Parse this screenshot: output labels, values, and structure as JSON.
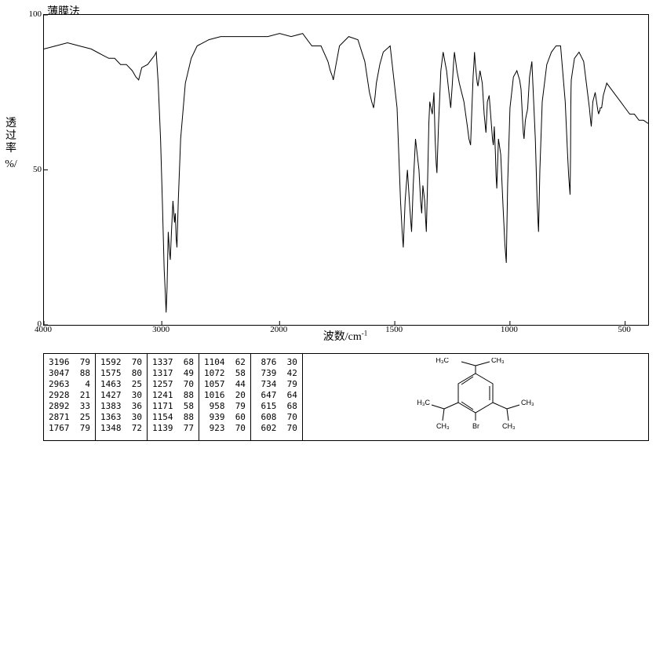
{
  "method_title": "薄膜法",
  "x_axis_label": "波数/cm",
  "x_axis_label_sup": "-1",
  "y_axis_label_lines": [
    "透",
    "过",
    "率"
  ],
  "y_axis_unit": "%/",
  "y_ticks": [
    0,
    50,
    100
  ],
  "x_ticks": [
    4000,
    3000,
    2000,
    1500,
    1000,
    500
  ],
  "x_range": [
    4000,
    400
  ],
  "y_range": [
    0,
    100
  ],
  "colors": {
    "line": "#000000",
    "border": "#000000",
    "background": "#ffffff"
  },
  "line_width": 1,
  "chart_type": "line",
  "peak_table": [
    [
      [
        3196,
        79
      ],
      [
        3047,
        88
      ],
      [
        2963,
        4
      ],
      [
        2928,
        21
      ],
      [
        2892,
        33
      ],
      [
        2871,
        25
      ],
      [
        1767,
        79
      ]
    ],
    [
      [
        1592,
        70
      ],
      [
        1575,
        80
      ],
      [
        1463,
        25
      ],
      [
        1427,
        30
      ],
      [
        1383,
        36
      ],
      [
        1363,
        30
      ],
      [
        1348,
        72
      ]
    ],
    [
      [
        1337,
        68
      ],
      [
        1317,
        49
      ],
      [
        1257,
        70
      ],
      [
        1241,
        88
      ],
      [
        1171,
        58
      ],
      [
        1154,
        88
      ],
      [
        1139,
        77
      ]
    ],
    [
      [
        1104,
        62
      ],
      [
        1072,
        58
      ],
      [
        1057,
        44
      ],
      [
        1016,
        20
      ],
      [
        958,
        79
      ],
      [
        939,
        60
      ],
      [
        923,
        70
      ]
    ],
    [
      [
        876,
        30
      ],
      [
        739,
        42
      ],
      [
        734,
        79
      ],
      [
        647,
        64
      ],
      [
        615,
        68
      ],
      [
        608,
        70
      ],
      [
        602,
        70
      ]
    ]
  ],
  "structure": {
    "labels": {
      "top_left": "H₃C",
      "top_right": "CH₃",
      "mid_left_ch3": "CH₃",
      "mid_right_ch3": "CH₃",
      "bottom_center": "Br",
      "left_h3c": "H₃C",
      "right_ch3": "CH₃"
    },
    "label_fontsize": 9
  },
  "spectrum_points": [
    [
      4000,
      89
    ],
    [
      3900,
      90
    ],
    [
      3800,
      91
    ],
    [
      3700,
      90
    ],
    [
      3600,
      89
    ],
    [
      3500,
      87
    ],
    [
      3450,
      86
    ],
    [
      3400,
      86
    ],
    [
      3350,
      84
    ],
    [
      3300,
      84
    ],
    [
      3250,
      82
    ],
    [
      3220,
      80
    ],
    [
      3196,
      79
    ],
    [
      3170,
      83
    ],
    [
      3120,
      84
    ],
    [
      3080,
      86
    ],
    [
      3060,
      87
    ],
    [
      3047,
      88
    ],
    [
      3030,
      78
    ],
    [
      3010,
      60
    ],
    [
      2995,
      40
    ],
    [
      2980,
      18
    ],
    [
      2970,
      10
    ],
    [
      2963,
      4
    ],
    [
      2955,
      12
    ],
    [
      2945,
      30
    ],
    [
      2935,
      24
    ],
    [
      2928,
      21
    ],
    [
      2918,
      30
    ],
    [
      2905,
      40
    ],
    [
      2898,
      36
    ],
    [
      2892,
      33
    ],
    [
      2885,
      36
    ],
    [
      2878,
      28
    ],
    [
      2871,
      25
    ],
    [
      2860,
      40
    ],
    [
      2840,
      60
    ],
    [
      2800,
      78
    ],
    [
      2750,
      86
    ],
    [
      2700,
      90
    ],
    [
      2600,
      92
    ],
    [
      2500,
      93
    ],
    [
      2400,
      93
    ],
    [
      2300,
      93
    ],
    [
      2200,
      93
    ],
    [
      2100,
      93
    ],
    [
      2000,
      94
    ],
    [
      1950,
      93
    ],
    [
      1900,
      94
    ],
    [
      1860,
      90
    ],
    [
      1820,
      90
    ],
    [
      1790,
      85
    ],
    [
      1780,
      82
    ],
    [
      1770,
      80
    ],
    [
      1767,
      79
    ],
    [
      1755,
      84
    ],
    [
      1740,
      90
    ],
    [
      1700,
      93
    ],
    [
      1660,
      92
    ],
    [
      1630,
      85
    ],
    [
      1610,
      75
    ],
    [
      1600,
      72
    ],
    [
      1592,
      70
    ],
    [
      1585,
      74
    ],
    [
      1580,
      78
    ],
    [
      1575,
      80
    ],
    [
      1565,
      84
    ],
    [
      1550,
      88
    ],
    [
      1520,
      90
    ],
    [
      1490,
      70
    ],
    [
      1475,
      40
    ],
    [
      1468,
      30
    ],
    [
      1463,
      25
    ],
    [
      1455,
      40
    ],
    [
      1445,
      50
    ],
    [
      1435,
      38
    ],
    [
      1430,
      33
    ],
    [
      1427,
      30
    ],
    [
      1420,
      45
    ],
    [
      1410,
      60
    ],
    [
      1395,
      50
    ],
    [
      1388,
      40
    ],
    [
      1383,
      36
    ],
    [
      1378,
      45
    ],
    [
      1370,
      40
    ],
    [
      1366,
      34
    ],
    [
      1363,
      30
    ],
    [
      1358,
      45
    ],
    [
      1352,
      65
    ],
    [
      1348,
      72
    ],
    [
      1343,
      70
    ],
    [
      1340,
      69
    ],
    [
      1337,
      68
    ],
    [
      1330,
      75
    ],
    [
      1325,
      60
    ],
    [
      1320,
      52
    ],
    [
      1317,
      49
    ],
    [
      1310,
      65
    ],
    [
      1300,
      82
    ],
    [
      1290,
      88
    ],
    [
      1275,
      82
    ],
    [
      1265,
      75
    ],
    [
      1260,
      72
    ],
    [
      1257,
      70
    ],
    [
      1250,
      78
    ],
    [
      1245,
      84
    ],
    [
      1241,
      88
    ],
    [
      1230,
      82
    ],
    [
      1220,
      78
    ],
    [
      1200,
      72
    ],
    [
      1185,
      64
    ],
    [
      1178,
      60
    ],
    [
      1171,
      58
    ],
    [
      1165,
      70
    ],
    [
      1160,
      80
    ],
    [
      1156,
      85
    ],
    [
      1154,
      88
    ],
    [
      1150,
      84
    ],
    [
      1145,
      80
    ],
    [
      1142,
      78
    ],
    [
      1139,
      77
    ],
    [
      1130,
      82
    ],
    [
      1120,
      78
    ],
    [
      1112,
      68
    ],
    [
      1107,
      64
    ],
    [
      1104,
      62
    ],
    [
      1098,
      72
    ],
    [
      1090,
      74
    ],
    [
      1082,
      66
    ],
    [
      1076,
      60
    ],
    [
      1072,
      58
    ],
    [
      1068,
      64
    ],
    [
      1063,
      55
    ],
    [
      1060,
      48
    ],
    [
      1057,
      44
    ],
    [
      1050,
      60
    ],
    [
      1040,
      55
    ],
    [
      1030,
      38
    ],
    [
      1022,
      26
    ],
    [
      1018,
      22
    ],
    [
      1016,
      20
    ],
    [
      1010,
      45
    ],
    [
      1000,
      70
    ],
    [
      985,
      80
    ],
    [
      970,
      82
    ],
    [
      962,
      80
    ],
    [
      958,
      79
    ],
    [
      952,
      76
    ],
    [
      945,
      66
    ],
    [
      942,
      62
    ],
    [
      939,
      60
    ],
    [
      933,
      66
    ],
    [
      928,
      68
    ],
    [
      925,
      69
    ],
    [
      923,
      70
    ],
    [
      915,
      80
    ],
    [
      905,
      85
    ],
    [
      890,
      60
    ],
    [
      882,
      40
    ],
    [
      878,
      33
    ],
    [
      876,
      30
    ],
    [
      870,
      50
    ],
    [
      860,
      72
    ],
    [
      840,
      84
    ],
    [
      820,
      88
    ],
    [
      800,
      90
    ],
    [
      780,
      90
    ],
    [
      760,
      72
    ],
    [
      750,
      55
    ],
    [
      745,
      48
    ],
    [
      742,
      45
    ],
    [
      739,
      42
    ],
    [
      737,
      55
    ],
    [
      736,
      70
    ],
    [
      735,
      76
    ],
    [
      734,
      79
    ],
    [
      728,
      82
    ],
    [
      720,
      86
    ],
    [
      700,
      88
    ],
    [
      680,
      85
    ],
    [
      665,
      76
    ],
    [
      655,
      70
    ],
    [
      650,
      66
    ],
    [
      647,
      64
    ],
    [
      640,
      72
    ],
    [
      630,
      75
    ],
    [
      622,
      71
    ],
    [
      618,
      69
    ],
    [
      615,
      68
    ],
    [
      612,
      69
    ],
    [
      610,
      69
    ],
    [
      608,
      70
    ],
    [
      606,
      70
    ],
    [
      604,
      70
    ],
    [
      602,
      70
    ],
    [
      595,
      74
    ],
    [
      580,
      78
    ],
    [
      560,
      76
    ],
    [
      540,
      74
    ],
    [
      520,
      72
    ],
    [
      500,
      70
    ],
    [
      480,
      68
    ],
    [
      460,
      68
    ],
    [
      440,
      66
    ],
    [
      420,
      66
    ],
    [
      400,
      65
    ]
  ]
}
